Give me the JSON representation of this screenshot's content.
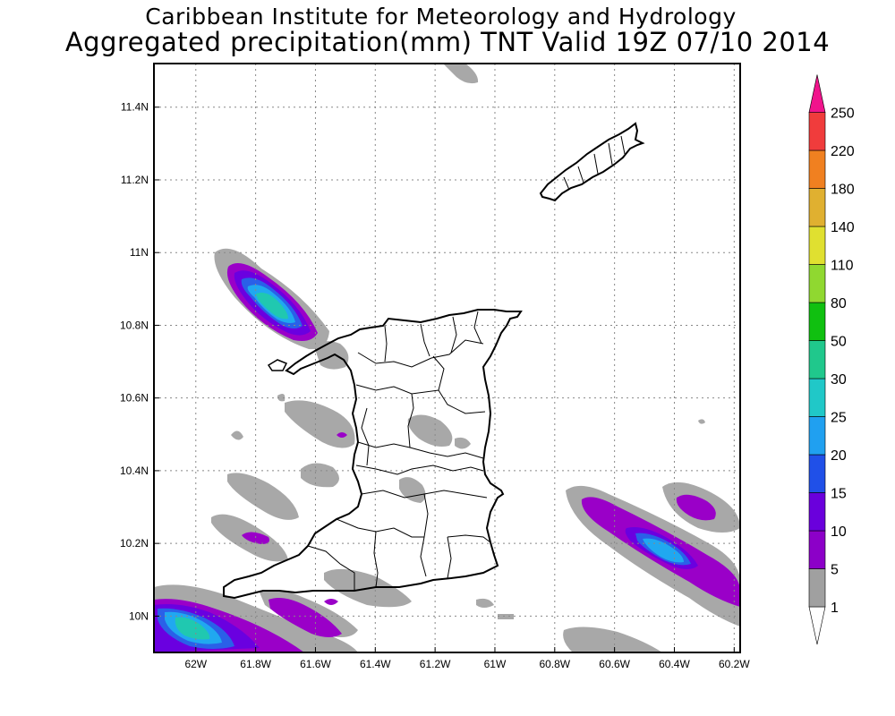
{
  "title": {
    "line1": "Caribbean Institute for Meteorology and Hydrology",
    "line2": "Aggregated precipitation(mm) TNT Valid 19Z 07/10 2014"
  },
  "map": {
    "grid": true,
    "lon_ticks": [
      "62W",
      "61.8W",
      "61.6W",
      "61.4W",
      "61.2W",
      "61W",
      "60.8W",
      "60.6W",
      "60.4W",
      "60.2W"
    ],
    "lat_ticks": [
      "11.4N",
      "11.2N",
      "11N",
      "10.8N",
      "10.6N",
      "10.4N",
      "10.2N",
      "10N"
    ],
    "lon_range": [
      -62.14,
      -60.18
    ],
    "lat_range": [
      9.9,
      11.52
    ]
  },
  "colorbar": {
    "labels": [
      "1",
      "5",
      "10",
      "15",
      "20",
      "25",
      "30",
      "50",
      "80",
      "110",
      "140",
      "180",
      "220",
      "250"
    ],
    "colors": [
      "#ffffff",
      "#a0a0a0",
      "#8c00c8",
      "#6a00dc",
      "#2050e8",
      "#20a0f0",
      "#20c8c8",
      "#20c88c",
      "#10c010",
      "#90d830",
      "#e0e030",
      "#e0b030",
      "#f08020",
      "#f03c3c",
      "#f0148c"
    ]
  }
}
